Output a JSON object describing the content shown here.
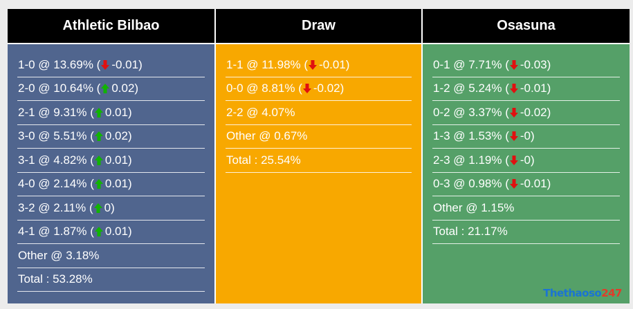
{
  "colors": {
    "home_bg": "#50658e",
    "draw_bg": "#f8a800",
    "away_bg": "#55a068",
    "header_bg": "#000000",
    "up": "#11b400",
    "down": "#e01010"
  },
  "columns": {
    "home": {
      "title": "Athletic Bilbao",
      "rows": [
        {
          "score": "1-0",
          "pct": "13.69%",
          "dir": "down",
          "change": "-0.01"
        },
        {
          "score": "2-0",
          "pct": "10.64%",
          "dir": "up",
          "change": "0.02"
        },
        {
          "score": "2-1",
          "pct": "9.31%",
          "dir": "up",
          "change": "0.01"
        },
        {
          "score": "3-0",
          "pct": "5.51%",
          "dir": "up",
          "change": "0.02"
        },
        {
          "score": "3-1",
          "pct": "4.82%",
          "dir": "up",
          "change": "0.01"
        },
        {
          "score": "4-0",
          "pct": "2.14%",
          "dir": "up",
          "change": "0.01"
        },
        {
          "score": "3-2",
          "pct": "2.11%",
          "dir": "up",
          "change": "0"
        },
        {
          "score": "4-1",
          "pct": "1.87%",
          "dir": "up",
          "change": "0.01"
        }
      ],
      "other": "Other @ 3.18%",
      "total": "Total : 53.28%"
    },
    "draw": {
      "title": "Draw",
      "rows": [
        {
          "score": "1-1",
          "pct": "11.98%",
          "dir": "down",
          "change": "-0.01"
        },
        {
          "score": "0-0",
          "pct": "8.81%",
          "dir": "down",
          "change": "-0.02"
        },
        {
          "score": "2-2",
          "pct": "4.07%",
          "dir": "",
          "change": ""
        }
      ],
      "other": "Other @ 0.67%",
      "total": "Total : 25.54%"
    },
    "away": {
      "title": "Osasuna",
      "rows": [
        {
          "score": "0-1",
          "pct": "7.71%",
          "dir": "down",
          "change": "-0.03"
        },
        {
          "score": "1-2",
          "pct": "5.24%",
          "dir": "down",
          "change": "-0.01"
        },
        {
          "score": "0-2",
          "pct": "3.37%",
          "dir": "down",
          "change": "-0.02"
        },
        {
          "score": "1-3",
          "pct": "1.53%",
          "dir": "down",
          "change": "-0"
        },
        {
          "score": "2-3",
          "pct": "1.19%",
          "dir": "down",
          "change": "-0"
        },
        {
          "score": "0-3",
          "pct": "0.98%",
          "dir": "down",
          "change": "-0.01"
        }
      ],
      "other": "Other @ 1.15%",
      "total": "Total : 21.17%"
    }
  },
  "watermark": {
    "part1": "Thethaoso",
    "part2": "247"
  }
}
